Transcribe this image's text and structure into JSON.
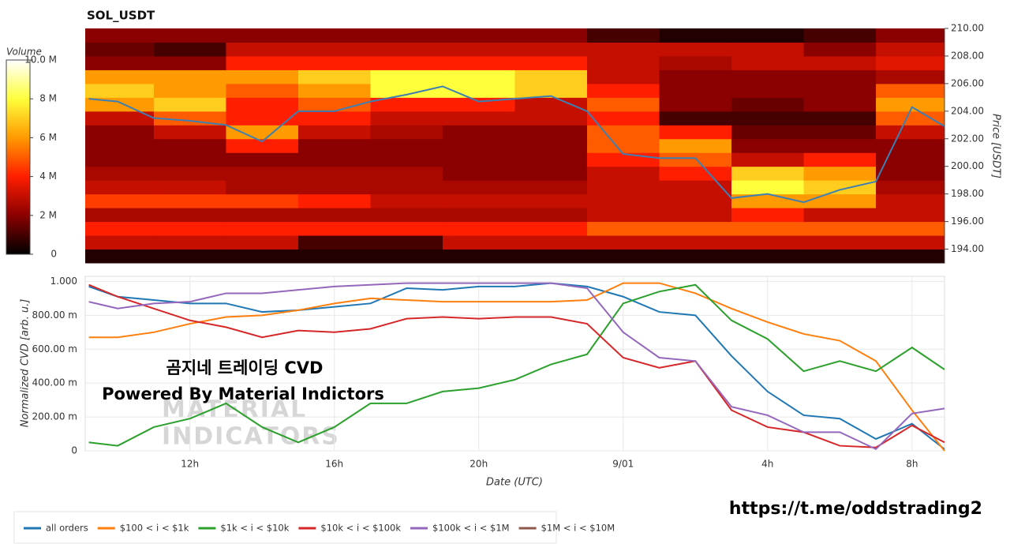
{
  "chart_data": [
    {
      "type": "heatmap",
      "title": "SOL_USDT",
      "ylabel": "Price [USDT]",
      "colorbar_label": "Volume",
      "colormap": [
        "#000000",
        "#8b0000",
        "#ff1e00",
        "#ff9a00",
        "#ffff3c",
        "#ffffff"
      ],
      "zlim": [
        0,
        10000000.0
      ],
      "zticks": [
        0,
        {
          "value": 2000000.0,
          "label": "2 M"
        },
        {
          "value": 4000000.0,
          "label": "4 M"
        },
        {
          "value": 6000000.0,
          "label": "6 M"
        },
        {
          "value": 8000000.0,
          "label": "8 M"
        },
        {
          "value": 10000000.0,
          "label": "10.0 M"
        }
      ],
      "xlim": [
        9.1,
        32.9
      ],
      "ylim": [
        193,
        210
      ],
      "yticks": [
        {
          "value": 194,
          "label": "194.00"
        },
        {
          "value": 196,
          "label": "196.00"
        },
        {
          "value": 198,
          "label": "198.00"
        },
        {
          "value": 200,
          "label": "200.00"
        },
        {
          "value": 202,
          "label": "202.00"
        },
        {
          "value": 204,
          "label": "204.00"
        },
        {
          "value": 206,
          "label": "206.00"
        },
        {
          "value": 208,
          "label": "208.00"
        },
        {
          "value": 210,
          "label": "210.00"
        }
      ],
      "x_bins": [
        9.1,
        11,
        13,
        15,
        17,
        19,
        21,
        23,
        25,
        27,
        29,
        31,
        32.9
      ],
      "y_bins": [
        193,
        194,
        195,
        196,
        197,
        198,
        199,
        200,
        201,
        202,
        203,
        204,
        205,
        206,
        207,
        208,
        209,
        210
      ],
      "z": [
        [
          500000.0,
          500000.0,
          500000.0,
          500000.0,
          500000.0,
          500000.0,
          500000.0,
          500000.0,
          500000.0,
          500000.0,
          500000.0,
          500000.0
        ],
        [
          3000000.0,
          3000000.0,
          3000000.0,
          1000000.0,
          1000000.0,
          3000000.0,
          3000000.0,
          3000000.0,
          3000000.0,
          3000000.0,
          3000000.0,
          3000000.0
        ],
        [
          4000000.0,
          4000000.0,
          4000000.0,
          4000000.0,
          4000000.0,
          4000000.0,
          4000000.0,
          5000000.0,
          5000000.0,
          5000000.0,
          5000000.0,
          5000000.0
        ],
        [
          2500000.0,
          2500000.0,
          2500000.0,
          2500000.0,
          2500000.0,
          2500000.0,
          2500000.0,
          3000000.0,
          3000000.0,
          4000000.0,
          3000000.0,
          3000000.0
        ],
        [
          4500000.0,
          4500000.0,
          4500000.0,
          4000000.0,
          3000000.0,
          3000000.0,
          3000000.0,
          3000000.0,
          3000000.0,
          6000000.0,
          6000000.0,
          3000000.0
        ],
        [
          3000000.0,
          3000000.0,
          2500000.0,
          2500000.0,
          2500000.0,
          2500000.0,
          2500000.0,
          3000000.0,
          3000000.0,
          8000000.0,
          7000000.0,
          2500000.0
        ],
        [
          2500000.0,
          2500000.0,
          2500000.0,
          2500000.0,
          2500000.0,
          2000000.0,
          2000000.0,
          3000000.0,
          4000000.0,
          7000000.0,
          6000000.0,
          2000000.0
        ],
        [
          2000000.0,
          2000000.0,
          2000000.0,
          2000000.0,
          2000000.0,
          2000000.0,
          2000000.0,
          4000000.0,
          5000000.0,
          3000000.0,
          4000000.0,
          2000000.0
        ],
        [
          2000000.0,
          2000000.0,
          4000000.0,
          2000000.0,
          2000000.0,
          2000000.0,
          2000000.0,
          5000000.0,
          6000000.0,
          2000000.0,
          2000000.0,
          2000000.0
        ],
        [
          2000000.0,
          3000000.0,
          6000000.0,
          3000000.0,
          2500000.0,
          2000000.0,
          2000000.0,
          5000000.0,
          4000000.0,
          1500000.0,
          1500000.0,
          3000000.0
        ],
        [
          3000000.0,
          5000000.0,
          4000000.0,
          4000000.0,
          3000000.0,
          3000000.0,
          3000000.0,
          4000000.0,
          1000000.0,
          1000000.0,
          1000000.0,
          5000000.0
        ],
        [
          6000000.0,
          7000000.0,
          4000000.0,
          5000000.0,
          4000000.0,
          4000000.0,
          3000000.0,
          5000000.0,
          2000000.0,
          1500000.0,
          2000000.0,
          6000000.0
        ],
        [
          7000000.0,
          6000000.0,
          5000000.0,
          6000000.0,
          8000000.0,
          8000000.0,
          7000000.0,
          4000000.0,
          2000000.0,
          2000000.0,
          2000000.0,
          5000000.0
        ],
        [
          6000000.0,
          6000000.0,
          6000000.0,
          7000000.0,
          8000000.0,
          8000000.0,
          7000000.0,
          3000000.0,
          2000000.0,
          2000000.0,
          2000000.0,
          2500000.0
        ],
        [
          2000000.0,
          2000000.0,
          4000000.0,
          4000000.0,
          4000000.0,
          4000000.0,
          4000000.0,
          3000000.0,
          2500000.0,
          3000000.0,
          3000000.0,
          3500000.0
        ],
        [
          1500000.0,
          1000000.0,
          3000000.0,
          3000000.0,
          3000000.0,
          3000000.0,
          3000000.0,
          3000000.0,
          3000000.0,
          3000000.0,
          2000000.0,
          3000000.0
        ],
        [
          2000000.0,
          2000000.0,
          2000000.0,
          2000000.0,
          2000000.0,
          2000000.0,
          2000000.0,
          1000000.0,
          500000.0,
          500000.0,
          1000000.0,
          2000000.0
        ]
      ],
      "x": [
        9.2,
        10,
        11,
        12,
        13,
        14,
        15,
        16,
        17,
        18,
        19,
        20,
        21,
        22,
        23,
        24,
        25,
        26,
        27,
        28,
        29,
        30,
        31,
        32,
        32.9
      ],
      "series": [
        {
          "color": "#3d7fb3",
          "values": [
            204.9,
            204.7,
            203.5,
            203.3,
            203.0,
            201.8,
            204.0,
            204.0,
            204.7,
            205.2,
            205.8,
            204.7,
            204.9,
            205.1,
            204.0,
            200.9,
            200.6,
            200.6,
            197.7,
            198.0,
            197.4,
            198.3,
            198.9,
            204.3,
            202.9
          ]
        }
      ]
    },
    {
      "type": "line",
      "xlabel": "Date (UTC)",
      "ylabel": "Normalized CVD [arb. u.]",
      "xlim": [
        9.1,
        32.9
      ],
      "xticks": [
        {
          "value": 12,
          "label": "12h"
        },
        {
          "value": 16,
          "label": "16h"
        },
        {
          "value": 20,
          "label": "20h"
        },
        {
          "value": 24,
          "label": "9/01"
        },
        {
          "value": 28,
          "label": "4h"
        },
        {
          "value": 32,
          "label": "8h"
        }
      ],
      "ylim": [
        0,
        1.03
      ],
      "yticks": [
        0,
        {
          "value": 0.2,
          "label": "200.00 m"
        },
        {
          "value": 0.4,
          "label": "400.00 m"
        },
        {
          "value": 0.6,
          "label": "600.00 m"
        },
        {
          "value": 0.8,
          "label": "800.00 m"
        },
        {
          "value": 1,
          "label": "1.000"
        }
      ],
      "grid": true,
      "x": [
        9.2,
        10,
        11,
        12,
        13,
        14,
        15,
        16,
        17,
        18,
        19,
        20,
        21,
        22,
        23,
        24,
        25,
        26,
        27,
        28,
        29,
        30,
        31,
        32,
        32.9
      ],
      "series": [
        {
          "name": "all orders",
          "color": "#1f77b4",
          "values": [
            0.97,
            0.91,
            0.89,
            0.87,
            0.87,
            0.82,
            0.83,
            0.85,
            0.87,
            0.96,
            0.95,
            0.97,
            0.97,
            0.99,
            0.97,
            0.91,
            0.82,
            0.8,
            0.56,
            0.35,
            0.21,
            0.19,
            0.07,
            0.16,
            0.01
          ]
        },
        {
          "name": "$100 < i < $1k",
          "color": "#ff7f0e",
          "values": [
            0.67,
            0.67,
            0.7,
            0.75,
            0.79,
            0.8,
            0.83,
            0.87,
            0.9,
            0.89,
            0.88,
            0.88,
            0.88,
            0.88,
            0.89,
            0.99,
            0.99,
            0.93,
            0.84,
            0.76,
            0.69,
            0.65,
            0.53,
            0.24,
            0
          ]
        },
        {
          "name": "$1k < i < $10k",
          "color": "#2ca02c",
          "values": [
            0.05,
            0.03,
            0.14,
            0.19,
            0.28,
            0.14,
            0.05,
            0.14,
            0.28,
            0.28,
            0.35,
            0.37,
            0.42,
            0.51,
            0.57,
            0.87,
            0.94,
            0.98,
            0.77,
            0.66,
            0.47,
            0.53,
            0.47,
            0.61,
            0.48
          ]
        },
        {
          "name": "$10k < i < $100k",
          "color": "#d62728",
          "values": [
            0.98,
            0.91,
            0.84,
            0.77,
            0.73,
            0.67,
            0.71,
            0.7,
            0.72,
            0.78,
            0.79,
            0.78,
            0.79,
            0.79,
            0.75,
            0.55,
            0.49,
            0.53,
            0.24,
            0.14,
            0.11,
            0.03,
            0.02,
            0.15,
            0.05
          ]
        },
        {
          "name": "$100k < i < $1M",
          "color": "#9467bd",
          "values": [
            0.88,
            0.84,
            0.87,
            0.88,
            0.93,
            0.93,
            0.95,
            0.97,
            0.98,
            0.99,
            0.99,
            0.99,
            0.99,
            0.99,
            0.96,
            0.7,
            0.55,
            0.53,
            0.26,
            0.21,
            0.11,
            0.11,
            0.01,
            0.22,
            0.25
          ]
        },
        {
          "name": "$1M < i < $10M",
          "color": "#8c564b",
          "values": [
            null,
            null,
            null,
            null,
            null,
            null,
            null,
            null,
            null,
            null,
            null,
            null,
            null,
            null,
            null,
            null,
            null,
            null,
            null,
            null,
            null,
            null,
            null,
            null,
            null
          ]
        }
      ],
      "annotations": [
        "곰지네 트레이딩 CVD",
        "Powered By Material Indictors",
        "MATERIAL",
        "INDICATORS"
      ]
    }
  ],
  "footer": "https://t.me/oddstrading2"
}
